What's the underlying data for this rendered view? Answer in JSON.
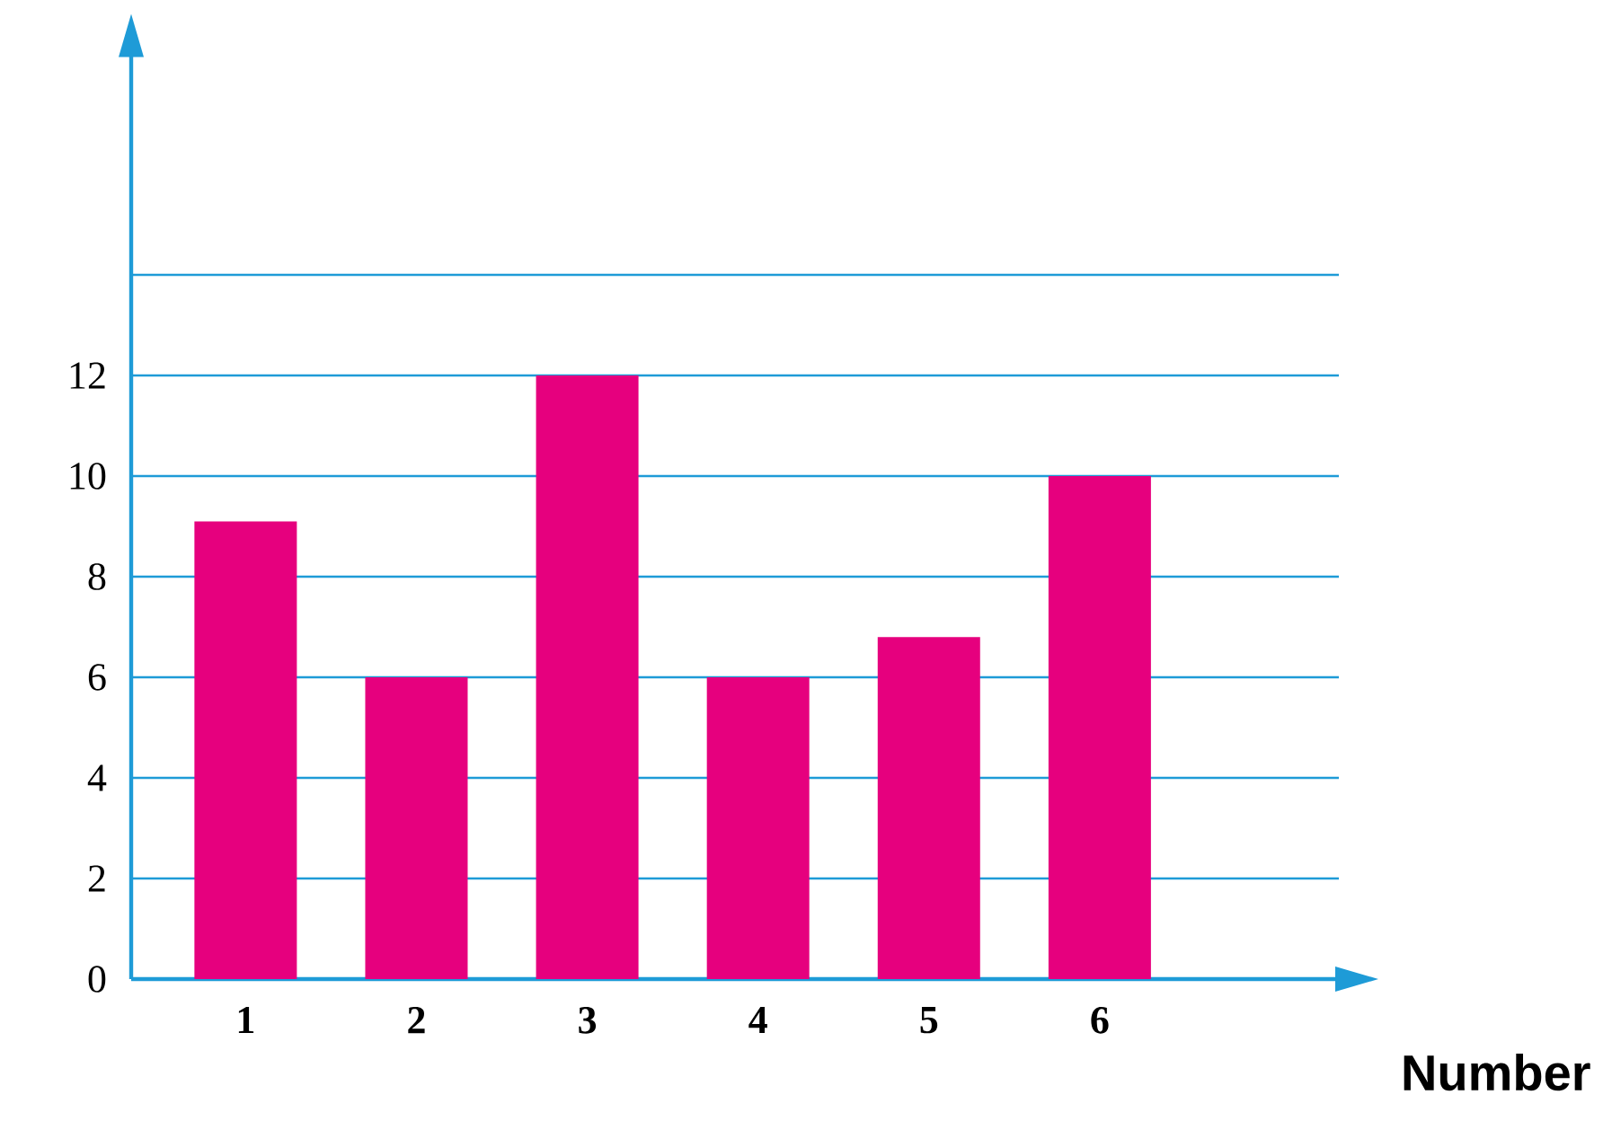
{
  "chart_data": {
    "type": "bar",
    "xlabel": "Number",
    "categories": [
      "1",
      "2",
      "3",
      "4",
      "5",
      "6"
    ],
    "values": [
      9.1,
      6,
      12,
      6,
      6.8,
      10
    ],
    "color": "#e6007e",
    "ylim": [
      0,
      18.4
    ],
    "yticks": [
      0,
      2,
      4,
      6,
      8,
      10,
      12,
      {
        "value": 14,
        "label": null
      }
    ],
    "grid": "y"
  }
}
